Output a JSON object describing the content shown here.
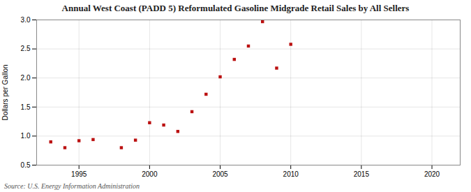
{
  "chart_data": {
    "type": "scatter",
    "title": "Annual West Coast (PADD 5) Reformulated Gasoline Midgrade Retail Sales by All Sellers",
    "y_label": "Dollars per Gallon",
    "source": "Source: U.S. Energy Information Administration",
    "x": [
      1993,
      1994,
      1995,
      1996,
      1998,
      1999,
      2000,
      2001,
      2002,
      2003,
      2004,
      2005,
      2006,
      2007,
      2008,
      2009,
      2010
    ],
    "values": [
      0.9,
      0.8,
      0.92,
      0.94,
      0.8,
      0.93,
      1.23,
      1.19,
      1.08,
      1.42,
      1.72,
      2.02,
      2.32,
      2.55,
      2.97,
      2.17,
      2.58
    ],
    "color": "#bb1111",
    "marker": "square",
    "xlim": [
      1992,
      2022
    ],
    "ylim": [
      0.5,
      3.0
    ],
    "xticks": [
      1995,
      2000,
      2005,
      2010,
      2015,
      2020
    ],
    "yticks": [
      0.5,
      {
        "value": 1,
        "label": "1.0"
      },
      1.5,
      {
        "value": 2,
        "label": "2.0"
      },
      2.5,
      {
        "value": 3,
        "label": "3.0"
      }
    ],
    "grid": true
  }
}
